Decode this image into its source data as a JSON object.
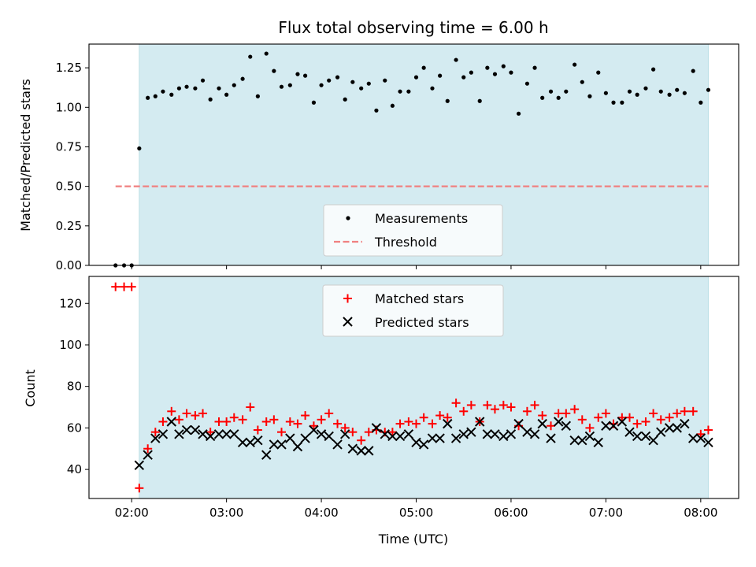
{
  "chart_data": [
    {
      "type": "scatter",
      "title": "Flux total observing time = 6.00 h",
      "xlabel": "",
      "ylabel": "Matched/Predicted stars",
      "xlim_hours": [
        1.55,
        8.4
      ],
      "ylim": [
        0,
        1.4
      ],
      "yticks": [
        0.0,
        0.25,
        0.5,
        0.75,
        1.0,
        1.25
      ],
      "ytick_labels": [
        "0.00",
        "0.25",
        "0.50",
        "0.75",
        "1.00",
        "1.25"
      ],
      "shaded_span_hours": [
        2.08,
        8.08
      ],
      "shade_color": "#d4ebf1",
      "threshold": {
        "name": "Threshold",
        "value": 0.5,
        "x_range_hours": [
          1.83,
          8.08
        ],
        "color": "#f08080"
      },
      "legend": {
        "placement": "lower-center",
        "entries": [
          "Measurements",
          "Threshold"
        ]
      },
      "series": [
        {
          "name": "Measurements",
          "color": "#000000",
          "x_hours": [
            1.83,
            1.92,
            2.0,
            2.08,
            2.17,
            2.25,
            2.33,
            2.42,
            2.5,
            2.58,
            2.67,
            2.75,
            2.83,
            2.92,
            3.0,
            3.08,
            3.17,
            3.25,
            3.33,
            3.42,
            3.5,
            3.58,
            3.67,
            3.75,
            3.83,
            3.92,
            4.0,
            4.08,
            4.17,
            4.25,
            4.33,
            4.42,
            4.5,
            4.58,
            4.67,
            4.75,
            4.83,
            4.92,
            5.0,
            5.08,
            5.17,
            5.25,
            5.33,
            5.42,
            5.5,
            5.58,
            5.67,
            5.75,
            5.83,
            5.92,
            6.0,
            6.08,
            6.17,
            6.25,
            6.33,
            6.42,
            6.5,
            6.58,
            6.67,
            6.75,
            6.83,
            6.92,
            7.0,
            7.08,
            7.17,
            7.25,
            7.33,
            7.42,
            7.5,
            7.58,
            7.67,
            7.75,
            7.83,
            7.92,
            8.0,
            8.08
          ],
          "y": [
            0.0,
            0.0,
            0.0,
            0.74,
            1.06,
            1.07,
            1.1,
            1.08,
            1.12,
            1.13,
            1.12,
            1.17,
            1.05,
            1.12,
            1.08,
            1.14,
            1.18,
            1.32,
            1.07,
            1.34,
            1.23,
            1.13,
            1.14,
            1.21,
            1.2,
            1.03,
            1.14,
            1.17,
            1.19,
            1.05,
            1.16,
            1.12,
            1.15,
            0.98,
            1.17,
            1.01,
            1.1,
            1.1,
            1.19,
            1.25,
            1.12,
            1.2,
            1.04,
            1.3,
            1.19,
            1.22,
            1.04,
            1.25,
            1.21,
            1.26,
            1.22,
            0.96,
            1.15,
            1.25,
            1.06,
            1.1,
            1.06,
            1.1,
            1.27,
            1.16,
            1.07,
            1.22,
            1.09,
            1.03,
            1.03,
            1.1,
            1.08,
            1.12,
            1.24,
            1.1,
            1.08,
            1.11,
            1.09,
            1.23,
            1.03,
            1.11
          ]
        }
      ]
    },
    {
      "type": "scatter",
      "title": "",
      "xlabel": "Time (UTC)",
      "ylabel": "Count",
      "xlim_hours": [
        1.55,
        8.4
      ],
      "ylim": [
        26,
        133
      ],
      "yticks": [
        40,
        60,
        80,
        100,
        120
      ],
      "ytick_labels": [
        "40",
        "60",
        "80",
        "100",
        "120"
      ],
      "xticks_hours": [
        2,
        3,
        4,
        5,
        6,
        7,
        8
      ],
      "xtick_labels": [
        "02:00",
        "03:00",
        "04:00",
        "05:00",
        "06:00",
        "07:00",
        "08:00"
      ],
      "shaded_span_hours": [
        2.08,
        8.08
      ],
      "legend": {
        "placement": "upper-center",
        "entries": [
          "Matched stars",
          "Predicted stars"
        ]
      },
      "series": [
        {
          "name": "Matched stars",
          "marker": "plus",
          "color": "#ff0000",
          "x_hours": [
            1.83,
            1.92,
            2.0,
            2.08,
            2.17,
            2.25,
            2.33,
            2.42,
            2.5,
            2.58,
            2.67,
            2.75,
            2.83,
            2.92,
            3.0,
            3.08,
            3.17,
            3.25,
            3.33,
            3.42,
            3.5,
            3.58,
            3.67,
            3.75,
            3.83,
            3.92,
            4.0,
            4.08,
            4.17,
            4.25,
            4.33,
            4.42,
            4.5,
            4.58,
            4.67,
            4.75,
            4.83,
            4.92,
            5.0,
            5.08,
            5.17,
            5.25,
            5.33,
            5.42,
            5.5,
            5.58,
            5.67,
            5.75,
            5.83,
            5.92,
            6.0,
            6.08,
            6.17,
            6.25,
            6.33,
            6.42,
            6.5,
            6.58,
            6.67,
            6.75,
            6.83,
            6.92,
            7.0,
            7.08,
            7.17,
            7.25,
            7.33,
            7.42,
            7.5,
            7.58,
            7.67,
            7.75,
            7.83,
            7.92,
            8.0,
            8.08
          ],
          "y": [
            128,
            128,
            128,
            31,
            50,
            58,
            63,
            68,
            64,
            67,
            66,
            67,
            58,
            63,
            63,
            65,
            64,
            70,
            59,
            63,
            64,
            58,
            63,
            62,
            66,
            61,
            64,
            67,
            62,
            60,
            58,
            54,
            58,
            59,
            58,
            58,
            62,
            63,
            62,
            65,
            62,
            66,
            65,
            72,
            68,
            71,
            63,
            71,
            69,
            71,
            70,
            61,
            68,
            71,
            66,
            61,
            67,
            67,
            69,
            64,
            60,
            65,
            67,
            62,
            65,
            65,
            62,
            63,
            67,
            64,
            65,
            67,
            68,
            68,
            57,
            59
          ]
        },
        {
          "name": "Predicted stars",
          "marker": "x",
          "color": "#000000",
          "x_hours": [
            2.08,
            2.17,
            2.25,
            2.33,
            2.42,
            2.5,
            2.58,
            2.67,
            2.75,
            2.83,
            2.92,
            3.0,
            3.08,
            3.17,
            3.25,
            3.33,
            3.42,
            3.5,
            3.58,
            3.67,
            3.75,
            3.83,
            3.92,
            4.0,
            4.08,
            4.17,
            4.25,
            4.33,
            4.42,
            4.5,
            4.58,
            4.67,
            4.75,
            4.83,
            4.92,
            5.0,
            5.08,
            5.17,
            5.25,
            5.33,
            5.42,
            5.5,
            5.58,
            5.67,
            5.75,
            5.83,
            5.92,
            6.0,
            6.08,
            6.17,
            6.25,
            6.33,
            6.42,
            6.5,
            6.58,
            6.67,
            6.75,
            6.83,
            6.92,
            7.0,
            7.08,
            7.17,
            7.25,
            7.33,
            7.42,
            7.5,
            7.58,
            7.67,
            7.75,
            7.83,
            7.92,
            8.0,
            8.08
          ],
          "y": [
            42,
            47,
            55,
            57,
            63,
            57,
            59,
            59,
            57,
            56,
            57,
            57,
            57,
            53,
            53,
            54,
            47,
            52,
            52,
            55,
            51,
            55,
            59,
            57,
            56,
            52,
            57,
            50,
            49,
            49,
            60,
            57,
            56,
            56,
            57,
            53,
            52,
            55,
            55,
            62,
            55,
            57,
            58,
            63,
            57,
            57,
            56,
            57,
            62,
            58,
            57,
            62,
            55,
            63,
            61,
            54,
            54,
            56,
            53,
            61,
            61,
            63,
            58,
            56,
            56,
            54,
            58,
            60,
            60,
            62,
            55,
            55,
            53
          ]
        }
      ]
    }
  ]
}
